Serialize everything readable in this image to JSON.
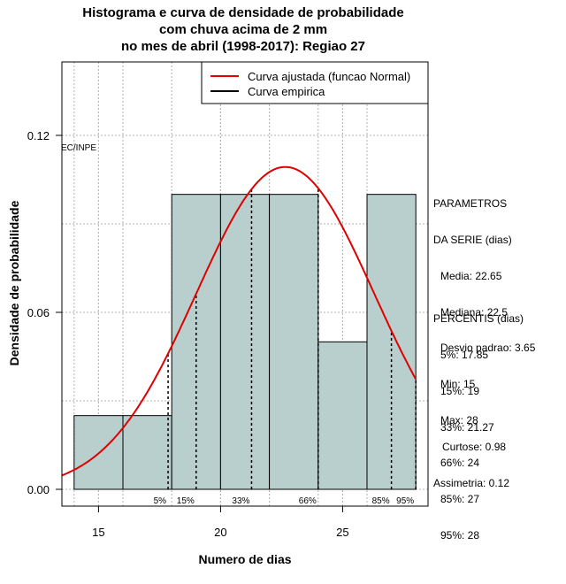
{
  "chart_data": {
    "type": "histogram",
    "title_lines": [
      "Histograma e curva de densidade de probabilidade",
      "com chuva acima de 2 mm",
      "no mes de abril (1998-2017): Regiao 27"
    ],
    "xlabel": "Numero de dias",
    "ylabel": "Densidade de probabilidade",
    "xlim": [
      13.5,
      28.5
    ],
    "ylim": [
      0,
      0.146
    ],
    "x_ticks": [
      15,
      20,
      25
    ],
    "y_ticks": [
      0.0,
      0.06,
      0.12
    ],
    "y_tick_labels": [
      "0.00",
      "0.06",
      "0.12"
    ],
    "bars": [
      {
        "x0": 14,
        "x1": 16,
        "density": 0.025
      },
      {
        "x0": 16,
        "x1": 18,
        "density": 0.025
      },
      {
        "x0": 18,
        "x1": 20,
        "density": 0.1
      },
      {
        "x0": 20,
        "x1": 22,
        "density": 0.1
      },
      {
        "x0": 22,
        "x1": 24,
        "density": 0.1
      },
      {
        "x0": 24,
        "x1": 26,
        "density": 0.05
      },
      {
        "x0": 26,
        "x1": 28,
        "density": 0.1
      }
    ],
    "normal_fit": {
      "mean": 22.65,
      "sd": 3.65
    },
    "percentile_markers": [
      {
        "label": "5%",
        "x": 17.85
      },
      {
        "label": "15%",
        "x": 19
      },
      {
        "label": "33%",
        "x": 21.27
      },
      {
        "label": "66%",
        "x": 24
      },
      {
        "label": "85%",
        "x": 27
      },
      {
        "label": "95%",
        "x": 28
      }
    ],
    "legend": [
      {
        "label": "Curva ajustada (funcao Normal)",
        "color": "#e00000"
      },
      {
        "label": "Curva empirica",
        "color": "#000000"
      }
    ],
    "watermark": "EC/INPE",
    "grid": true
  },
  "stats": {
    "header1": "PARAMETROS",
    "header2": "DA SERIE (dias)",
    "media": "Media: 22.65",
    "mediana": "Mediana: 22.5",
    "desvio": "Desvio padrao: 3.65",
    "min": "Min: 15",
    "max": "Max: 28",
    "perc_header": "PERCENTIS (dias)",
    "p5": "5%: 17.85",
    "p15": "15%: 19",
    "p33": "33%: 21.27",
    "p66": "66%: 24",
    "p85": "85%: 27",
    "p95": "95%: 28",
    "curtose": "Curtose: 0.98",
    "assimetria": "Assimetria: 0.12"
  },
  "colors": {
    "bar_fill": "#b8cfce",
    "curve": "#e00000",
    "grid": "#b0b0b0"
  }
}
